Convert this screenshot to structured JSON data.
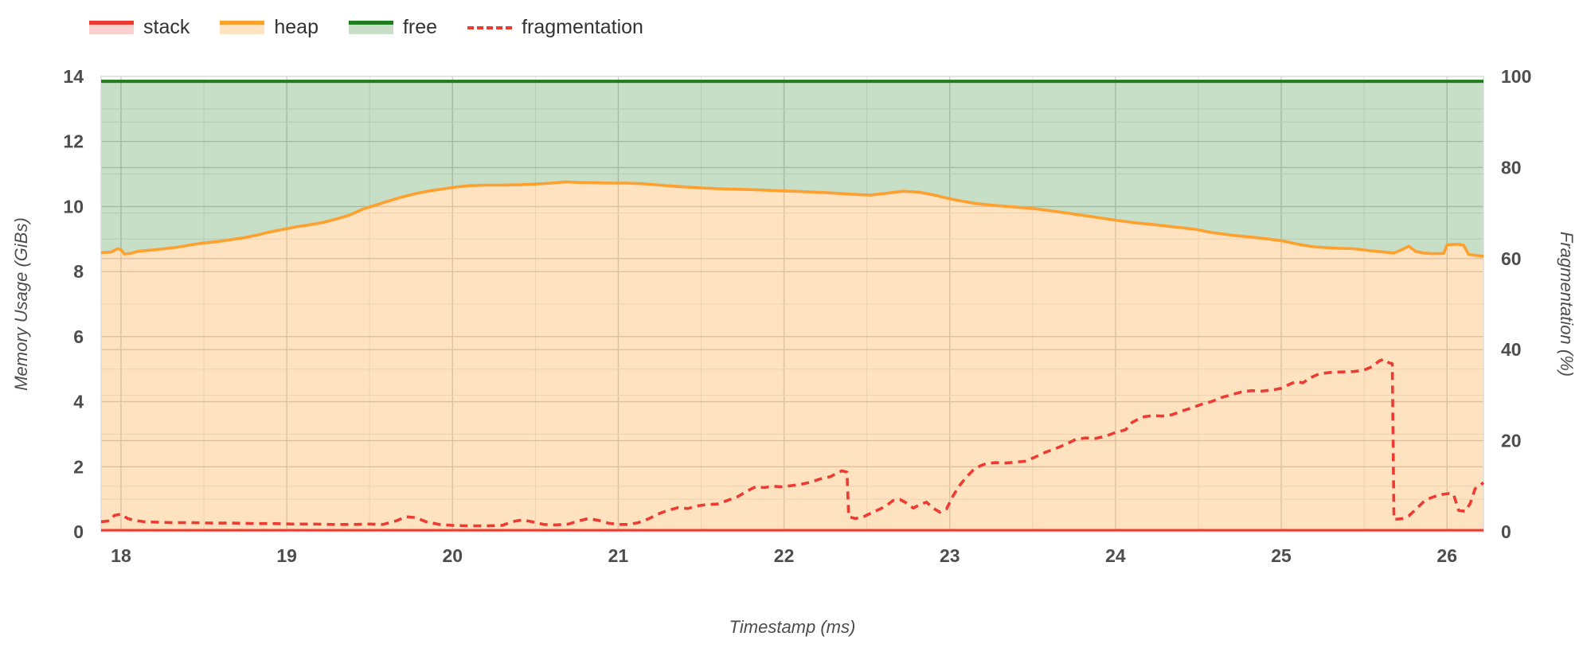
{
  "legend": {
    "items": [
      {
        "label": "stack",
        "line_color": "#ee3b32",
        "fill_color": "#f9d0cd",
        "style": "solid"
      },
      {
        "label": "heap",
        "line_color": "#ffa02e",
        "fill_color": "#ffe4c3",
        "style": "solid"
      },
      {
        "label": "free",
        "line_color": "#1f7d1f",
        "fill_color": "#c9dec6",
        "style": "solid"
      },
      {
        "label": "fragmentation",
        "line_color": "#ee3b32",
        "fill_color": "none",
        "style": "dashed"
      }
    ]
  },
  "chart_data": {
    "type": "line",
    "title": "",
    "xlabel": "Timestamp (ms)",
    "ylabel_left": "Memory Usage (GiBs)",
    "ylabel_right": "Fragmentation (%)",
    "xlim": [
      17.88,
      26.22
    ],
    "ylim_left": [
      0,
      14
    ],
    "ylim_right": [
      0,
      100
    ],
    "xticks": [
      18,
      19,
      20,
      21,
      22,
      23,
      24,
      25,
      26
    ],
    "yticks_left": [
      0,
      2,
      4,
      6,
      8,
      10,
      12,
      14
    ],
    "yticks_right": [
      0,
      20,
      40,
      60,
      80,
      100
    ],
    "grid": {
      "x_minor_step": 0.5,
      "y_left_minor_step": 1,
      "y_right_minor_step": 10,
      "minor_color": "#e7e7e7",
      "major_color": "#cfcfcf",
      "border_color": "#d9d9d9"
    },
    "legend_position": "top-left",
    "series": [
      {
        "name": "free",
        "axis": "left",
        "color": "#1f7d1f",
        "fill_opacity": 0.25,
        "fill_to": "heap",
        "dash": null,
        "width": 4,
        "points": [
          [
            17.88,
            13.85
          ],
          [
            26.22,
            13.85
          ]
        ]
      },
      {
        "name": "heap",
        "axis": "left",
        "color": "#ffa02e",
        "fill_opacity": 0.3,
        "fill_to": "zero",
        "dash": null,
        "width": 3.6,
        "points": [
          [
            17.88,
            8.58
          ],
          [
            17.94,
            8.6
          ],
          [
            17.98,
            8.7
          ],
          [
            18.0,
            8.68
          ],
          [
            18.02,
            8.54
          ],
          [
            18.06,
            8.56
          ],
          [
            18.1,
            8.62
          ],
          [
            18.18,
            8.66
          ],
          [
            18.26,
            8.7
          ],
          [
            18.34,
            8.75
          ],
          [
            18.42,
            8.82
          ],
          [
            18.5,
            8.88
          ],
          [
            18.58,
            8.92
          ],
          [
            18.66,
            8.98
          ],
          [
            18.74,
            9.04
          ],
          [
            18.82,
            9.12
          ],
          [
            18.9,
            9.22
          ],
          [
            18.98,
            9.3
          ],
          [
            19.06,
            9.38
          ],
          [
            19.14,
            9.44
          ],
          [
            19.22,
            9.51
          ],
          [
            19.3,
            9.62
          ],
          [
            19.38,
            9.74
          ],
          [
            19.46,
            9.92
          ],
          [
            19.54,
            10.05
          ],
          [
            19.62,
            10.18
          ],
          [
            19.7,
            10.3
          ],
          [
            19.78,
            10.4
          ],
          [
            19.86,
            10.48
          ],
          [
            19.94,
            10.54
          ],
          [
            20.02,
            10.6
          ],
          [
            20.1,
            10.64
          ],
          [
            20.2,
            10.66
          ],
          [
            20.3,
            10.66
          ],
          [
            20.4,
            10.67
          ],
          [
            20.5,
            10.69
          ],
          [
            20.6,
            10.72
          ],
          [
            20.68,
            10.76
          ],
          [
            20.76,
            10.74
          ],
          [
            20.85,
            10.73
          ],
          [
            20.95,
            10.72
          ],
          [
            21.05,
            10.72
          ],
          [
            21.15,
            10.7
          ],
          [
            21.25,
            10.66
          ],
          [
            21.35,
            10.62
          ],
          [
            21.5,
            10.57
          ],
          [
            21.65,
            10.54
          ],
          [
            21.8,
            10.52
          ],
          [
            21.95,
            10.49
          ],
          [
            22.1,
            10.46
          ],
          [
            22.25,
            10.43
          ],
          [
            22.4,
            10.38
          ],
          [
            22.52,
            10.35
          ],
          [
            22.62,
            10.41
          ],
          [
            22.72,
            10.47
          ],
          [
            22.82,
            10.44
          ],
          [
            22.9,
            10.36
          ],
          [
            22.98,
            10.26
          ],
          [
            23.06,
            10.18
          ],
          [
            23.16,
            10.09
          ],
          [
            23.28,
            10.03
          ],
          [
            23.4,
            9.98
          ],
          [
            23.52,
            9.93
          ],
          [
            23.64,
            9.85
          ],
          [
            23.76,
            9.76
          ],
          [
            23.88,
            9.67
          ],
          [
            24.0,
            9.58
          ],
          [
            24.12,
            9.5
          ],
          [
            24.24,
            9.44
          ],
          [
            24.36,
            9.37
          ],
          [
            24.48,
            9.3
          ],
          [
            24.58,
            9.2
          ],
          [
            24.7,
            9.12
          ],
          [
            24.82,
            9.06
          ],
          [
            24.94,
            8.99
          ],
          [
            25.02,
            8.93
          ],
          [
            25.1,
            8.84
          ],
          [
            25.2,
            8.76
          ],
          [
            25.32,
            8.72
          ],
          [
            25.44,
            8.7
          ],
          [
            25.54,
            8.64
          ],
          [
            25.62,
            8.6
          ],
          [
            25.68,
            8.57
          ],
          [
            25.73,
            8.68
          ],
          [
            25.77,
            8.78
          ],
          [
            25.81,
            8.62
          ],
          [
            25.86,
            8.57
          ],
          [
            25.92,
            8.55
          ],
          [
            25.98,
            8.56
          ],
          [
            26.0,
            8.82
          ],
          [
            26.06,
            8.84
          ],
          [
            26.1,
            8.81
          ],
          [
            26.13,
            8.53
          ],
          [
            26.17,
            8.5
          ],
          [
            26.22,
            8.47
          ]
        ]
      },
      {
        "name": "stack",
        "axis": "left",
        "color": "#ee3b32",
        "fill_opacity": 0.25,
        "fill_to": "zero",
        "dash": null,
        "width": 3,
        "points": [
          [
            17.88,
            0.05
          ],
          [
            26.22,
            0.05
          ]
        ]
      },
      {
        "name": "fragmentation",
        "axis": "right",
        "color": "#ee3b32",
        "fill_opacity": 0,
        "fill_to": null,
        "dash": [
          10,
          7
        ],
        "width": 3.6,
        "points": [
          [
            17.88,
            2.2
          ],
          [
            17.93,
            2.4
          ],
          [
            17.96,
            3.6
          ],
          [
            18.0,
            3.9
          ],
          [
            18.04,
            2.9
          ],
          [
            18.08,
            2.5
          ],
          [
            18.14,
            2.2
          ],
          [
            18.22,
            2.1
          ],
          [
            18.32,
            2.0
          ],
          [
            18.44,
            2.0
          ],
          [
            18.56,
            1.9
          ],
          [
            18.68,
            1.9
          ],
          [
            18.8,
            1.8
          ],
          [
            18.92,
            1.8
          ],
          [
            19.04,
            1.7
          ],
          [
            19.16,
            1.7
          ],
          [
            19.28,
            1.6
          ],
          [
            19.4,
            1.6
          ],
          [
            19.5,
            1.7
          ],
          [
            19.58,
            1.6
          ],
          [
            19.66,
            2.4
          ],
          [
            19.72,
            3.3
          ],
          [
            19.78,
            3.1
          ],
          [
            19.84,
            2.2
          ],
          [
            19.92,
            1.6
          ],
          [
            20.0,
            1.4
          ],
          [
            20.1,
            1.3
          ],
          [
            20.2,
            1.3
          ],
          [
            20.3,
            1.4
          ],
          [
            20.36,
            2.2
          ],
          [
            20.42,
            2.6
          ],
          [
            20.48,
            2.2
          ],
          [
            20.55,
            1.6
          ],
          [
            20.62,
            1.5
          ],
          [
            20.7,
            1.7
          ],
          [
            20.76,
            2.4
          ],
          [
            20.82,
            2.9
          ],
          [
            20.88,
            2.5
          ],
          [
            20.94,
            1.9
          ],
          [
            21.0,
            1.6
          ],
          [
            21.06,
            1.6
          ],
          [
            21.12,
            2.0
          ],
          [
            21.18,
            2.8
          ],
          [
            21.24,
            3.9
          ],
          [
            21.3,
            4.7
          ],
          [
            21.36,
            5.3
          ],
          [
            21.42,
            5.1
          ],
          [
            21.48,
            5.7
          ],
          [
            21.54,
            6.0
          ],
          [
            21.6,
            6.1
          ],
          [
            21.66,
            6.9
          ],
          [
            21.72,
            7.7
          ],
          [
            21.78,
            9.0
          ],
          [
            21.83,
            9.9
          ],
          [
            21.88,
            9.7
          ],
          [
            21.93,
            10.0
          ],
          [
            21.98,
            9.9
          ],
          [
            22.04,
            10.1
          ],
          [
            22.1,
            10.4
          ],
          [
            22.16,
            10.9
          ],
          [
            22.22,
            11.6
          ],
          [
            22.28,
            12.1
          ],
          [
            22.32,
            12.9
          ],
          [
            22.35,
            13.4
          ],
          [
            22.38,
            13.1
          ],
          [
            22.39,
            3.3
          ],
          [
            22.43,
            2.9
          ],
          [
            22.48,
            3.3
          ],
          [
            22.53,
            4.2
          ],
          [
            22.58,
            5.0
          ],
          [
            22.62,
            5.8
          ],
          [
            22.66,
            6.9
          ],
          [
            22.7,
            7.1
          ],
          [
            22.74,
            6.3
          ],
          [
            22.78,
            5.2
          ],
          [
            22.82,
            6.0
          ],
          [
            22.86,
            6.5
          ],
          [
            22.9,
            5.2
          ],
          [
            22.94,
            4.3
          ],
          [
            22.98,
            5.0
          ],
          [
            23.02,
            7.9
          ],
          [
            23.06,
            10.2
          ],
          [
            23.1,
            12.0
          ],
          [
            23.14,
            13.5
          ],
          [
            23.18,
            14.4
          ],
          [
            23.22,
            15.0
          ],
          [
            23.28,
            15.2
          ],
          [
            23.34,
            15.1
          ],
          [
            23.4,
            15.3
          ],
          [
            23.46,
            15.5
          ],
          [
            23.52,
            16.5
          ],
          [
            23.58,
            17.5
          ],
          [
            23.64,
            18.3
          ],
          [
            23.7,
            19.2
          ],
          [
            23.76,
            20.3
          ],
          [
            23.82,
            20.6
          ],
          [
            23.88,
            20.5
          ],
          [
            23.94,
            21.0
          ],
          [
            24.0,
            21.8
          ],
          [
            24.06,
            22.4
          ],
          [
            24.1,
            24.0
          ],
          [
            24.16,
            25.2
          ],
          [
            24.22,
            25.5
          ],
          [
            24.28,
            25.4
          ],
          [
            24.34,
            25.7
          ],
          [
            24.4,
            26.5
          ],
          [
            24.46,
            27.2
          ],
          [
            24.52,
            28.0
          ],
          [
            24.58,
            28.6
          ],
          [
            24.64,
            29.5
          ],
          [
            24.7,
            30.1
          ],
          [
            24.76,
            30.7
          ],
          [
            24.82,
            31.0
          ],
          [
            24.88,
            30.9
          ],
          [
            24.94,
            31.1
          ],
          [
            25.0,
            31.5
          ],
          [
            25.05,
            32.4
          ],
          [
            25.09,
            33.0
          ],
          [
            25.13,
            32.7
          ],
          [
            25.18,
            33.9
          ],
          [
            25.23,
            34.7
          ],
          [
            25.3,
            35.0
          ],
          [
            25.37,
            35.1
          ],
          [
            25.44,
            35.2
          ],
          [
            25.5,
            35.5
          ],
          [
            25.55,
            36.3
          ],
          [
            25.59,
            37.5
          ],
          [
            25.62,
            37.9
          ],
          [
            25.65,
            37.1
          ],
          [
            25.67,
            36.9
          ],
          [
            25.68,
            2.7
          ],
          [
            25.73,
            2.9
          ],
          [
            25.77,
            3.5
          ],
          [
            25.82,
            5.2
          ],
          [
            25.87,
            7.0
          ],
          [
            25.92,
            7.7
          ],
          [
            25.97,
            8.2
          ],
          [
            26.01,
            8.4
          ],
          [
            26.04,
            8.2
          ],
          [
            26.07,
            4.7
          ],
          [
            26.11,
            4.5
          ],
          [
            26.14,
            6.2
          ],
          [
            26.17,
            9.5
          ],
          [
            26.2,
            10.2
          ],
          [
            26.22,
            10.8
          ]
        ]
      }
    ]
  }
}
